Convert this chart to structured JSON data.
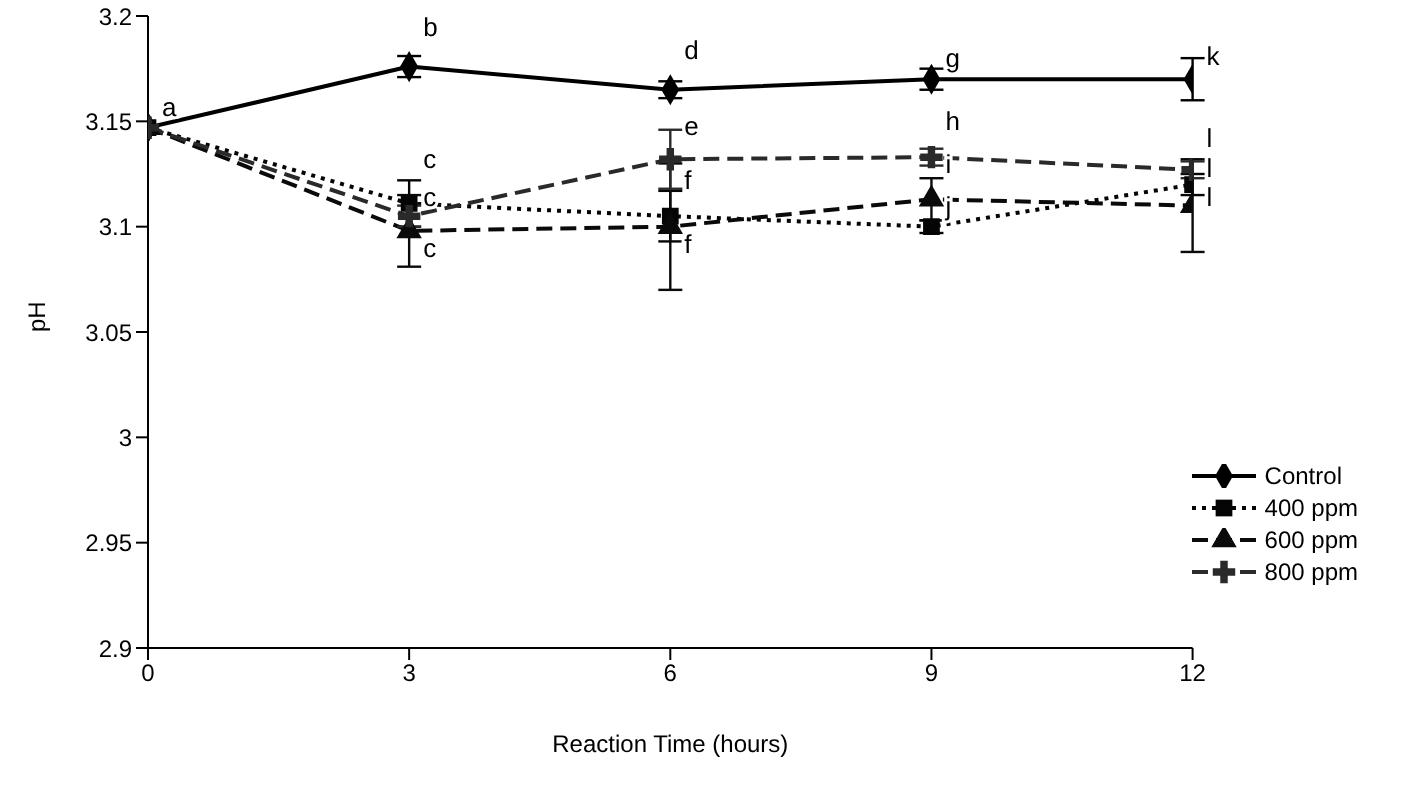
{
  "chart_data": {
    "type": "line",
    "xlabel": "Reaction Time (hours)",
    "ylabel": "pH",
    "x": [
      0,
      3,
      6,
      9,
      12
    ],
    "series": [
      {
        "name": "Control",
        "color": "#000000",
        "marker": "diamond",
        "line_style": "solid",
        "values": [
          3.147,
          3.176,
          3.165,
          3.17,
          3.17
        ],
        "errors": [
          null,
          0.005,
          0.004,
          0.005,
          0.01
        ]
      },
      {
        "name": "400 ppm",
        "color": "#050505",
        "marker": "square",
        "line_style": "dotted",
        "values": [
          3.147,
          3.111,
          3.105,
          3.1,
          3.12
        ],
        "errors": [
          null,
          0.011,
          0.012,
          0.003,
          0.005
        ]
      },
      {
        "name": "600 ppm",
        "color": "#0a0a0a",
        "marker": "triangle",
        "line_style": "dashed",
        "values": [
          3.147,
          3.098,
          3.1,
          3.113,
          3.11
        ],
        "errors": [
          null,
          0.017,
          0.03,
          0.01,
          0.022
        ]
      },
      {
        "name": "800 ppm",
        "color": "#2a2a2a",
        "marker": "cross",
        "line_style": "dashed",
        "values": [
          3.147,
          3.105,
          3.132,
          3.133,
          3.127
        ],
        "errors": [
          null,
          0.005,
          0.014,
          0.004,
          0.004
        ]
      }
    ],
    "annotations": [
      {
        "text": "a",
        "x": 0,
        "y": 3.147
      },
      {
        "text": "b",
        "x": 3,
        "y": 3.185
      },
      {
        "text": "c",
        "x": 3,
        "y": 3.122
      },
      {
        "text": "c",
        "x": 3,
        "y": 3.104
      },
      {
        "text": "c",
        "x": 3,
        "y": 3.08
      },
      {
        "text": "d",
        "x": 6,
        "y": 3.174
      },
      {
        "text": "e",
        "x": 6,
        "y": 3.138
      },
      {
        "text": "f",
        "x": 6,
        "y": 3.112
      },
      {
        "text": "f",
        "x": 6,
        "y": 3.082
      },
      {
        "text": "g",
        "x": 9,
        "y": 3.17
      },
      {
        "text": "h",
        "x": 9,
        "y": 3.14
      },
      {
        "text": "i",
        "x": 9,
        "y": 3.12
      },
      {
        "text": "j",
        "x": 9,
        "y": 3.1
      },
      {
        "text": "k",
        "x": 12,
        "y": 3.171
      },
      {
        "text": "l",
        "x": 12,
        "y": 3.132
      },
      {
        "text": "l",
        "x": 12,
        "y": 3.118
      },
      {
        "text": "l",
        "x": 12,
        "y": 3.104
      }
    ],
    "xlim": [
      0,
      12
    ],
    "xticks": [
      0,
      3,
      6,
      9,
      12
    ],
    "ylim": [
      2.9,
      3.2
    ],
    "yticks": [
      2.9,
      2.95,
      3,
      3.05,
      3.1,
      3.15,
      3.2
    ],
    "grid": false,
    "legend": "right"
  }
}
